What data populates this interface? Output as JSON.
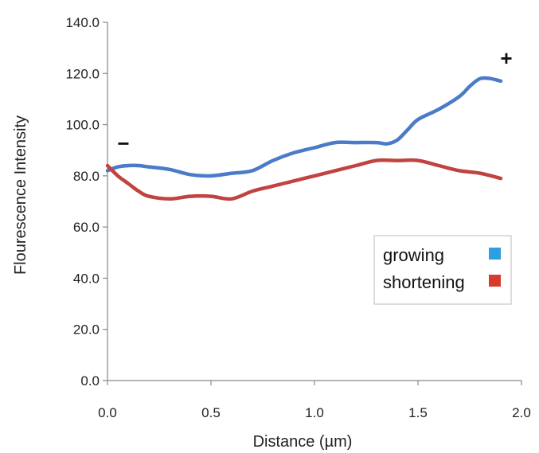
{
  "chart_data": {
    "type": "line",
    "title": "",
    "xlabel": "Distance (µm)",
    "ylabel": "Flourescence Intensity",
    "xlim": [
      0,
      2
    ],
    "ylim": [
      0,
      140
    ],
    "x_ticks": [
      "0.0",
      "0.5",
      "1.0",
      "1.5",
      "2.0"
    ],
    "y_ticks": [
      "0.0",
      "20.0",
      "40.0",
      "60.0",
      "80.0",
      "100.0",
      "120.0",
      "140.0"
    ],
    "grid": false,
    "legend_position": "bottom-right",
    "annotations": [
      {
        "text": "−",
        "near": "left"
      },
      {
        "text": "+",
        "near": "top-right"
      }
    ],
    "series": [
      {
        "name": "growing",
        "color": "#4a7bc8",
        "legend_color": "#2d9fe0",
        "x": [
          0.0,
          0.05,
          0.1,
          0.15,
          0.2,
          0.3,
          0.4,
          0.5,
          0.6,
          0.7,
          0.8,
          0.9,
          1.0,
          1.1,
          1.2,
          1.3,
          1.35,
          1.4,
          1.45,
          1.5,
          1.6,
          1.7,
          1.75,
          1.8,
          1.85,
          1.9
        ],
        "values": [
          82,
          83.5,
          84,
          84,
          83.5,
          82.5,
          80.5,
          80,
          81,
          82,
          86,
          89,
          91,
          93,
          93,
          93,
          92.5,
          94,
          98,
          102,
          106,
          111,
          115,
          118,
          118,
          117
        ]
      },
      {
        "name": "shortening",
        "color": "#c0433f",
        "legend_color": "#d83b2e",
        "x": [
          0.0,
          0.05,
          0.1,
          0.15,
          0.2,
          0.3,
          0.4,
          0.5,
          0.6,
          0.7,
          0.8,
          0.9,
          1.0,
          1.1,
          1.2,
          1.3,
          1.4,
          1.5,
          1.6,
          1.7,
          1.8,
          1.9
        ],
        "values": [
          84,
          80,
          77,
          74,
          72,
          71,
          72,
          72,
          71,
          74,
          76,
          78,
          80,
          82,
          84,
          86,
          86,
          86,
          84,
          82,
          81,
          79
        ]
      }
    ]
  }
}
